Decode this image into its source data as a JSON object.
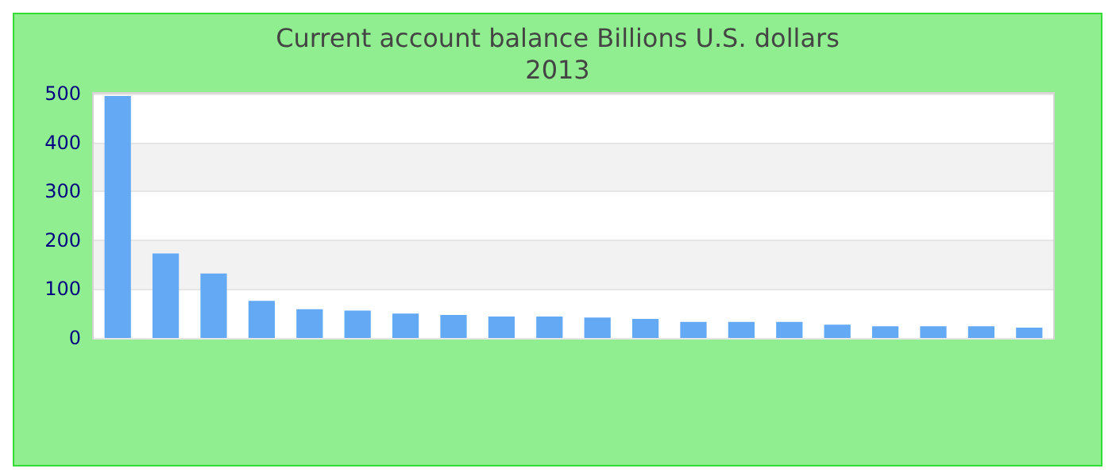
{
  "chart_data": {
    "type": "bar",
    "title": "Current account balance Billions U.S. dollars",
    "subtitle": "2013",
    "categories": [
      null,
      null,
      null,
      null,
      null,
      null,
      null,
      null,
      null,
      null,
      null,
      null,
      null,
      null,
      null,
      null,
      null,
      null,
      null,
      null
    ],
    "values": [
      495,
      173,
      132,
      76,
      59,
      56,
      50,
      47,
      44,
      44,
      42,
      39,
      33,
      33,
      33,
      27,
      24,
      24,
      24,
      21
    ],
    "color": "#63a9f4",
    "ylim": [
      0,
      500
    ],
    "yticks": [
      0,
      100,
      200,
      300,
      400,
      500
    ],
    "grid": "y"
  }
}
